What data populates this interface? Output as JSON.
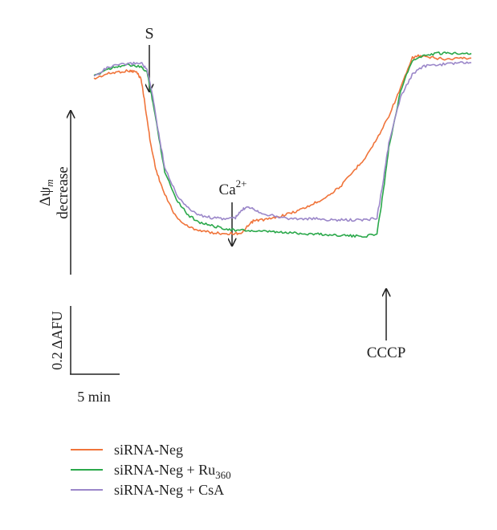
{
  "colors": {
    "siRNA-Neg": "#f0743a",
    "siRNA-Neg + Ru360": "#2aa84a",
    "siRNA-Neg + CsA": "#9b87c9",
    "annotation": "#222222"
  },
  "chart_data": {
    "type": "line",
    "x_unit": "min",
    "y_unit": "ΔAFU",
    "x_range": [
      0,
      32
    ],
    "y_range": [
      -0.13,
      1.05
    ],
    "annotations": {
      "s_label": "S",
      "s_time": 4.5,
      "ca_label": "Ca",
      "ca_superscript": "2+",
      "ca_time": 11.8,
      "cccp_label": "CCCP",
      "cccp_time": 23.9,
      "ylabel_symbol": "Δψ",
      "ylabel_subscript": "m",
      "ylabel_word": "decrease"
    },
    "scale_bar": {
      "y_label": "0.2 ΔAFU",
      "y_value": 0.2,
      "x_label": "5 min",
      "x_value": 5
    },
    "legend_position": "bottom-left",
    "series": [
      {
        "name": "siRNA-Neg",
        "legend_text": "siRNA-Neg",
        "legend_sub": "",
        "color": "#f0743a",
        "points": [
          [
            0,
            0.9
          ],
          [
            1,
            0.92
          ],
          [
            2,
            0.93
          ],
          [
            3,
            0.935
          ],
          [
            3.6,
            0.93
          ],
          [
            4,
            0.9
          ],
          [
            4.3,
            0.8
          ],
          [
            4.8,
            0.62
          ],
          [
            5.3,
            0.5
          ],
          [
            6,
            0.4
          ],
          [
            7,
            0.3
          ],
          [
            8,
            0.26
          ],
          [
            9,
            0.245
          ],
          [
            10,
            0.235
          ],
          [
            11,
            0.232
          ],
          [
            12,
            0.232
          ],
          [
            12.6,
            0.235
          ],
          [
            13,
            0.26
          ],
          [
            13.5,
            0.285
          ],
          [
            14,
            0.29
          ],
          [
            15,
            0.295
          ],
          [
            16,
            0.31
          ],
          [
            17,
            0.325
          ],
          [
            18,
            0.345
          ],
          [
            19,
            0.37
          ],
          [
            20,
            0.4
          ],
          [
            21,
            0.44
          ],
          [
            22,
            0.5
          ],
          [
            23,
            0.56
          ],
          [
            24,
            0.64
          ],
          [
            25,
            0.74
          ],
          [
            26,
            0.86
          ],
          [
            27,
            0.99
          ],
          [
            27.5,
            1.0
          ],
          [
            28,
            0.995
          ],
          [
            29,
            0.99
          ],
          [
            30,
            0.985
          ],
          [
            31,
            0.99
          ],
          [
            32,
            0.99
          ]
        ]
      },
      {
        "name": "siRNA-Neg + Ru360",
        "legend_text": "siRNA-Neg + Ru",
        "legend_sub": "360",
        "color": "#2aa84a",
        "points": [
          [
            0,
            0.91
          ],
          [
            1,
            0.94
          ],
          [
            2,
            0.955
          ],
          [
            3,
            0.96
          ],
          [
            4,
            0.95
          ],
          [
            4.5,
            0.93
          ],
          [
            5,
            0.8
          ],
          [
            5.5,
            0.65
          ],
          [
            6,
            0.5
          ],
          [
            7,
            0.38
          ],
          [
            8,
            0.31
          ],
          [
            9,
            0.28
          ],
          [
            10,
            0.265
          ],
          [
            11,
            0.255
          ],
          [
            12,
            0.245
          ],
          [
            13,
            0.245
          ],
          [
            14,
            0.24
          ],
          [
            15,
            0.24
          ],
          [
            16,
            0.235
          ],
          [
            17,
            0.235
          ],
          [
            18,
            0.23
          ],
          [
            19,
            0.23
          ],
          [
            20,
            0.225
          ],
          [
            21,
            0.225
          ],
          [
            22,
            0.22
          ],
          [
            23,
            0.22
          ],
          [
            24,
            0.23
          ],
          [
            24.5,
            0.4
          ],
          [
            25,
            0.6
          ],
          [
            26,
            0.85
          ],
          [
            27,
            0.98
          ],
          [
            28,
            1.0
          ],
          [
            29,
            1.01
          ],
          [
            30,
            1.01
          ],
          [
            31,
            1.012
          ],
          [
            32,
            1.01
          ]
        ]
      },
      {
        "name": "siRNA-Neg + CsA",
        "legend_text": "siRNA-Neg + CsA",
        "legend_sub": "",
        "color": "#9b87c9",
        "points": [
          [
            0,
            0.91
          ],
          [
            1,
            0.945
          ],
          [
            2,
            0.96
          ],
          [
            3,
            0.965
          ],
          [
            4,
            0.97
          ],
          [
            4.5,
            0.94
          ],
          [
            5,
            0.82
          ],
          [
            5.5,
            0.66
          ],
          [
            6,
            0.52
          ],
          [
            7,
            0.4
          ],
          [
            8,
            0.34
          ],
          [
            9,
            0.31
          ],
          [
            10,
            0.3
          ],
          [
            11,
            0.295
          ],
          [
            12,
            0.3
          ],
          [
            12.5,
            0.33
          ],
          [
            13,
            0.35
          ],
          [
            13.5,
            0.34
          ],
          [
            14,
            0.325
          ],
          [
            15,
            0.31
          ],
          [
            16,
            0.3
          ],
          [
            17,
            0.295
          ],
          [
            18,
            0.295
          ],
          [
            19,
            0.295
          ],
          [
            20,
            0.29
          ],
          [
            21,
            0.29
          ],
          [
            22,
            0.29
          ],
          [
            23,
            0.29
          ],
          [
            24,
            0.3
          ],
          [
            24.5,
            0.45
          ],
          [
            25,
            0.62
          ],
          [
            26,
            0.82
          ],
          [
            27,
            0.92
          ],
          [
            28,
            0.955
          ],
          [
            29,
            0.96
          ],
          [
            30,
            0.965
          ],
          [
            31,
            0.97
          ],
          [
            32,
            0.97
          ]
        ]
      }
    ]
  }
}
